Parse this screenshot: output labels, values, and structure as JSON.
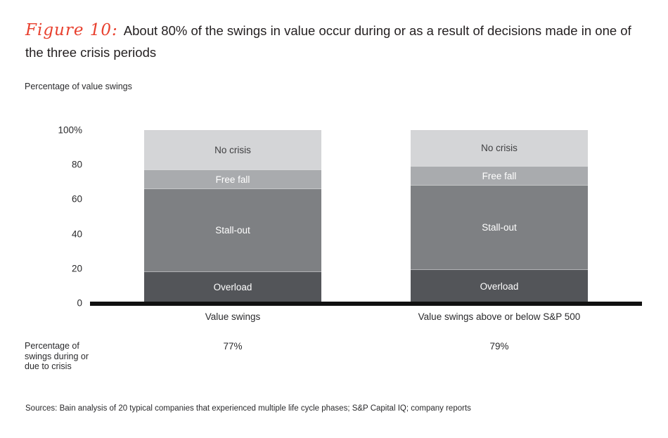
{
  "figure": {
    "label": "Figure 10:",
    "title": "About 80% of the swings in value occur during or as a result of decisions made in one of the three crisis periods",
    "subtitle": "Percentage of value swings"
  },
  "chart_data": {
    "type": "bar",
    "stacked": true,
    "categories": [
      "Value swings",
      "Value swings above or below S&P 500"
    ],
    "series": [
      {
        "name": "Overload",
        "values": [
          18,
          19
        ],
        "color": "#535559",
        "label_color": "#ffffff"
      },
      {
        "name": "Stall-out",
        "values": [
          48,
          49
        ],
        "color": "#7e8083",
        "label_color": "#ffffff"
      },
      {
        "name": "Free fall",
        "values": [
          11,
          11
        ],
        "color": "#a9abae",
        "label_color": "#ffffff"
      },
      {
        "name": "No crisis",
        "values": [
          23,
          21
        ],
        "color": "#d4d5d7",
        "label_color": "#3f3f41"
      }
    ],
    "title": "About 80% of the swings in value occur during or as a result of decisions made in one of the three crisis periods",
    "xlabel": "",
    "ylabel": "Percentage of value swings",
    "ylim": [
      0,
      100
    ],
    "ytick_values": [
      100,
      80,
      60,
      40,
      20,
      0
    ],
    "ytick_labels": [
      "100%",
      "80",
      "60",
      "40",
      "20",
      "0"
    ],
    "grid": false,
    "legend_position": "labels-inside-segments"
  },
  "stat_row": {
    "label": "Percentage of swings during or due to crisis",
    "values": [
      "77%",
      "79%"
    ]
  },
  "sources": "Sources: Bain analysis of 20 typical companies that experienced multiple life cycle phases; S&P Capital IQ; company reports",
  "colors": {
    "accent_red": "#e8402e",
    "text": "#231f20",
    "axis": "#111111",
    "background": "#ffffff"
  }
}
